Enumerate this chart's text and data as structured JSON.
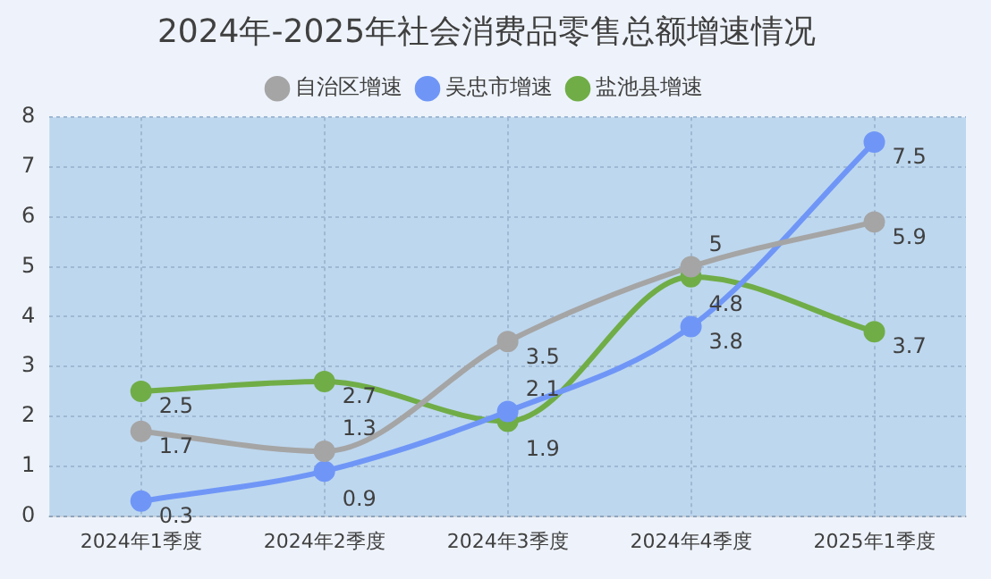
{
  "chart_data": {
    "type": "line",
    "title": "2024年-2025年社会消费品零售总额增速情况",
    "categories": [
      "2024年1季度",
      "2024年2季度",
      "2024年3季度",
      "2024年4季度",
      "2025年1季度"
    ],
    "series": [
      {
        "name": "自治区增速",
        "color": "#a5a5a5",
        "values": [
          1.7,
          1.3,
          3.5,
          5,
          5.9
        ]
      },
      {
        "name": "吴忠市增速",
        "color": "#6f96f7",
        "values": [
          0.3,
          0.9,
          2.1,
          3.8,
          7.5
        ]
      },
      {
        "name": "盐池县增速",
        "color": "#70ad47",
        "values": [
          2.5,
          2.7,
          1.9,
          4.8,
          3.7
        ]
      }
    ],
    "ylim": [
      0,
      8
    ],
    "yticks": [
      0,
      1,
      2,
      3,
      4,
      5,
      6,
      7,
      8
    ],
    "grid": true,
    "legend": "top",
    "marker": "circle",
    "line_style": "solid",
    "data_labels": true
  }
}
